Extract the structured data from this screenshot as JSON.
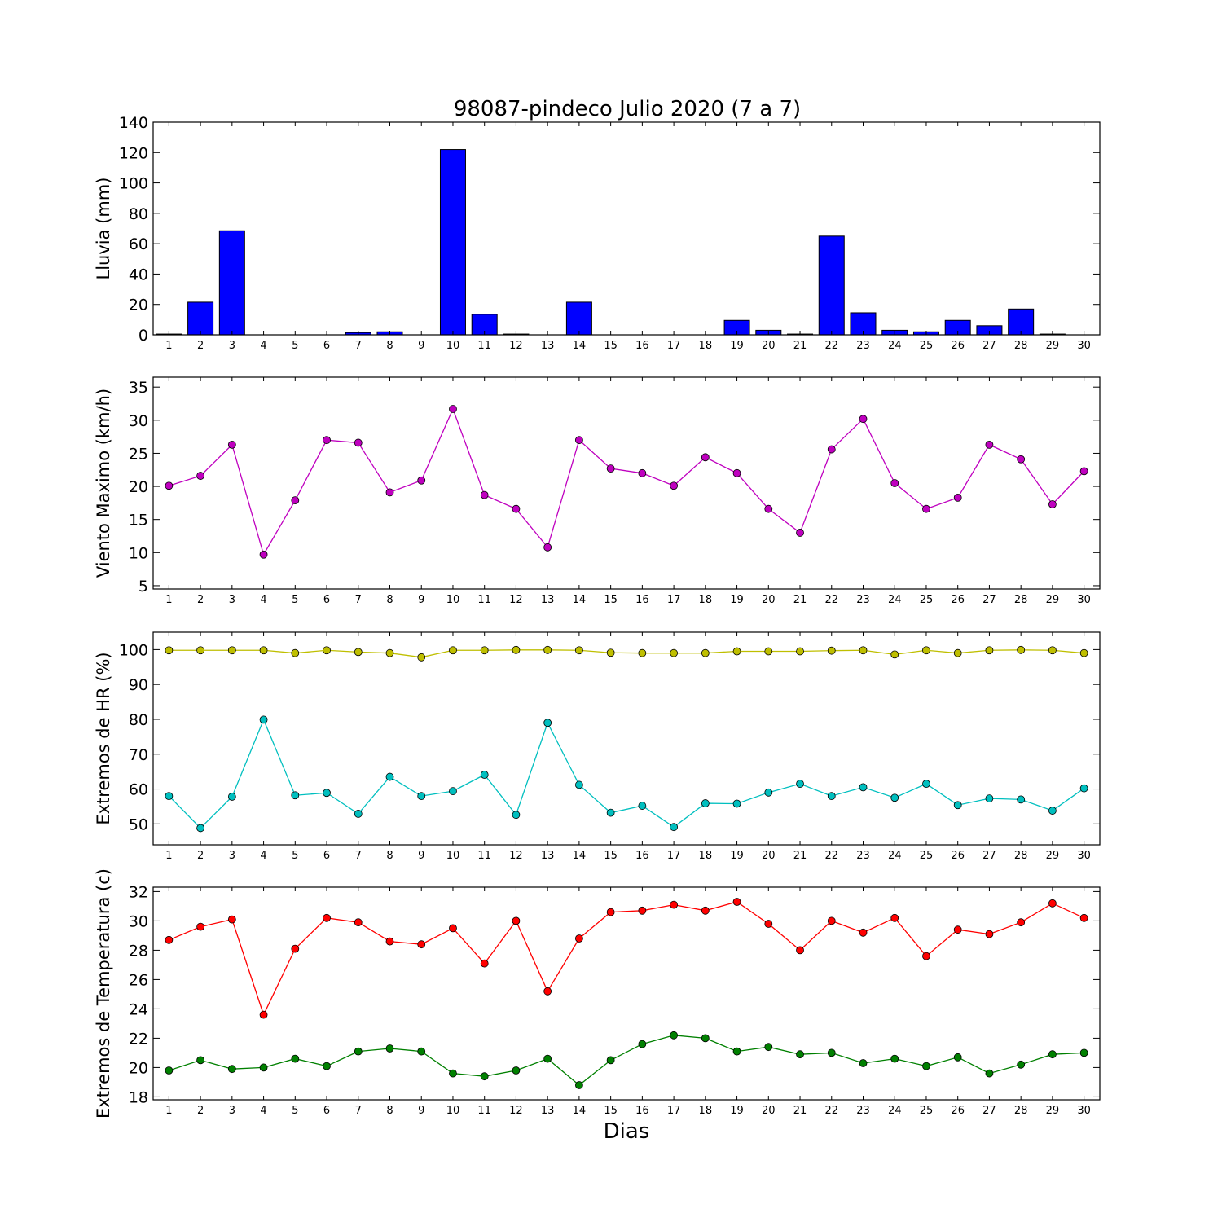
{
  "figure": {
    "title": "98087-pindeco Julio 2020  (7 a 7)",
    "xlabel": "Dias"
  },
  "chart_data": [
    {
      "type": "bar",
      "ylabel": "Lluvia (mm)",
      "ylim": [
        0,
        140
      ],
      "yticks": [
        0,
        20,
        40,
        60,
        80,
        100,
        120,
        140
      ],
      "grid": false,
      "bar_color": "#0000ff",
      "categories": [
        1,
        2,
        3,
        4,
        5,
        6,
        7,
        8,
        9,
        10,
        11,
        12,
        13,
        14,
        15,
        16,
        17,
        18,
        19,
        20,
        21,
        22,
        23,
        24,
        25,
        26,
        27,
        28,
        29,
        30
      ],
      "values": [
        0.5,
        21.5,
        68.5,
        0,
        0,
        0,
        1.5,
        2,
        0,
        122,
        13.5,
        0.5,
        0,
        21.5,
        0,
        0,
        0,
        0,
        9.5,
        3,
        0.5,
        65,
        14.5,
        3,
        2,
        9.5,
        6,
        17,
        0.5,
        0
      ]
    },
    {
      "type": "line",
      "ylabel": "Viento Maximo (km/h)",
      "ylim": [
        4.5,
        36.5
      ],
      "yticks": [
        5,
        10,
        15,
        20,
        25,
        30,
        35
      ],
      "grid": false,
      "x": [
        1,
        2,
        3,
        4,
        5,
        6,
        7,
        8,
        9,
        10,
        11,
        12,
        13,
        14,
        15,
        16,
        17,
        18,
        19,
        20,
        21,
        22,
        23,
        24,
        25,
        26,
        27,
        28,
        29,
        30
      ],
      "series": [
        {
          "color": "#bf00bf",
          "values": [
            20.1,
            21.6,
            26.3,
            9.7,
            17.9,
            27.0,
            26.6,
            19.1,
            20.9,
            31.7,
            18.7,
            16.6,
            10.8,
            27.0,
            22.7,
            22.0,
            20.1,
            24.4,
            22.0,
            16.6,
            13.0,
            25.6,
            30.2,
            20.5,
            16.6,
            18.3,
            26.3,
            24.1,
            17.3,
            22.3
          ]
        }
      ]
    },
    {
      "type": "line",
      "ylabel": "Extremos de HR (%)",
      "ylim": [
        44,
        105
      ],
      "yticks": [
        50,
        60,
        70,
        80,
        90,
        100
      ],
      "grid": false,
      "x": [
        1,
        2,
        3,
        4,
        5,
        6,
        7,
        8,
        9,
        10,
        11,
        12,
        13,
        14,
        15,
        16,
        17,
        18,
        19,
        20,
        21,
        22,
        23,
        24,
        25,
        26,
        27,
        28,
        29,
        30
      ],
      "series": [
        {
          "color": "#bfbf00",
          "values": [
            99.8,
            99.8,
            99.8,
            99.8,
            99.0,
            99.8,
            99.3,
            99.0,
            97.8,
            99.8,
            99.8,
            99.9,
            99.9,
            99.8,
            99.1,
            99.0,
            99.0,
            99.0,
            99.5,
            99.5,
            99.5,
            99.7,
            99.8,
            98.6,
            99.8,
            99.0,
            99.8,
            99.9,
            99.8,
            99.0
          ]
        },
        {
          "color": "#00bfbf",
          "values": [
            58.0,
            48.8,
            57.8,
            79.9,
            58.2,
            58.9,
            52.9,
            63.5,
            58.0,
            59.4,
            64.1,
            52.6,
            79.0,
            61.2,
            53.2,
            55.2,
            49.1,
            55.9,
            55.8,
            59.0,
            61.5,
            58.0,
            60.5,
            57.5,
            61.5,
            55.4,
            57.3,
            57.0,
            53.8,
            60.2
          ]
        }
      ]
    },
    {
      "type": "line",
      "ylabel": "Extremos de Temperatura (c)",
      "ylim": [
        17.8,
        32.3
      ],
      "yticks": [
        18,
        20,
        22,
        24,
        26,
        28,
        30,
        32
      ],
      "grid": false,
      "x": [
        1,
        2,
        3,
        4,
        5,
        6,
        7,
        8,
        9,
        10,
        11,
        12,
        13,
        14,
        15,
        16,
        17,
        18,
        19,
        20,
        21,
        22,
        23,
        24,
        25,
        26,
        27,
        28,
        29,
        30
      ],
      "series": [
        {
          "color": "#ff0000",
          "values": [
            28.7,
            29.6,
            30.1,
            23.6,
            28.1,
            30.2,
            29.9,
            28.6,
            28.4,
            29.5,
            27.1,
            30.0,
            25.2,
            28.8,
            30.6,
            30.7,
            31.1,
            30.7,
            31.3,
            29.8,
            28.0,
            30.0,
            29.2,
            30.2,
            27.6,
            29.4,
            29.1,
            29.9,
            31.2,
            30.2
          ]
        },
        {
          "color": "#008000",
          "values": [
            19.8,
            20.5,
            19.9,
            20.0,
            20.6,
            20.1,
            21.1,
            21.3,
            21.1,
            19.6,
            19.4,
            19.8,
            20.6,
            18.8,
            20.5,
            21.6,
            22.2,
            22.0,
            21.1,
            21.4,
            20.9,
            21.0,
            20.3,
            20.6,
            20.1,
            20.7,
            19.6,
            20.2,
            20.9,
            21.0
          ]
        }
      ]
    }
  ]
}
